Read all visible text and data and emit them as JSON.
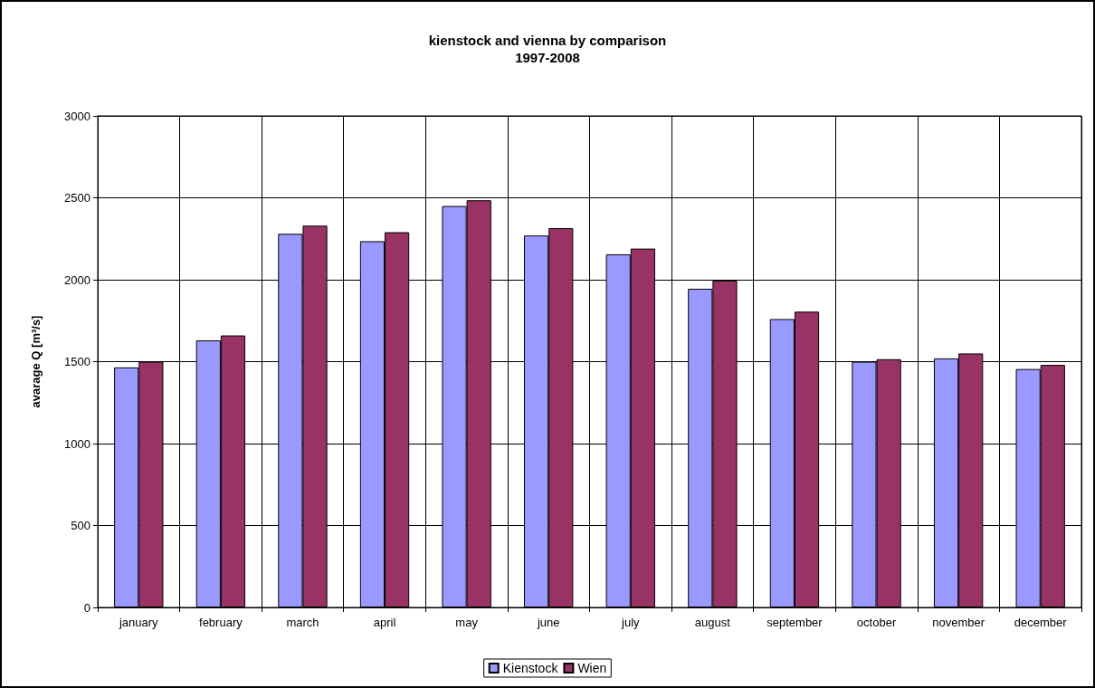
{
  "chart_data": {
    "type": "bar",
    "title": "kienstock and vienna by comparison",
    "subtitle": "1997-2008",
    "ylabel": "avarage Q [m³/s]",
    "categories": [
      "january",
      "february",
      "march",
      "april",
      "may",
      "june",
      "july",
      "august",
      "september",
      "october",
      "november",
      "december"
    ],
    "series": [
      {
        "name": "Kienstock",
        "color": "#9999ff",
        "values": [
          1465,
          1630,
          2280,
          2235,
          2450,
          2270,
          2155,
          1945,
          1760,
          1500,
          1520,
          1455
        ]
      },
      {
        "name": "Wien",
        "color": "#993366",
        "values": [
          1500,
          1660,
          2330,
          2290,
          2485,
          2315,
          2190,
          1995,
          1805,
          1515,
          1550,
          1480
        ]
      }
    ],
    "ylim": [
      0,
      3000
    ],
    "yticks": [
      0,
      500,
      1000,
      1500,
      2000,
      2500,
      3000
    ],
    "grid": true,
    "legend": "bottom"
  }
}
